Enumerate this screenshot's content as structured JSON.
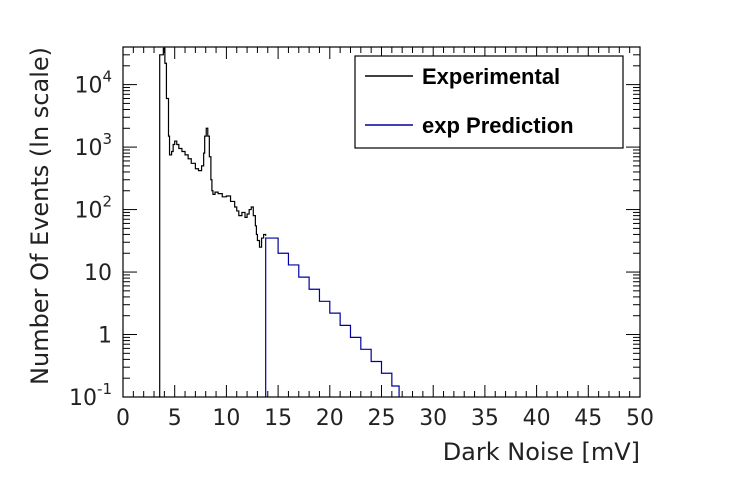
{
  "chart_data": {
    "type": "line",
    "title": "",
    "xlabel": "Dark Noise [mV]",
    "ylabel": "Number Of Events (ln scale)",
    "xlim": [
      0,
      50
    ],
    "ylim": [
      0.1,
      40000
    ],
    "yscale": "log",
    "grid": false,
    "legend_position": "top-right",
    "x_ticks": [
      0,
      5,
      10,
      15,
      20,
      25,
      30,
      35,
      40,
      45,
      50
    ],
    "x_tick_labels": [
      "0",
      "5",
      "10",
      "15",
      "20",
      "25",
      "30",
      "35",
      "40",
      "45",
      "50"
    ],
    "y_ticks": [
      0.1,
      1,
      10,
      100,
      1000,
      10000
    ],
    "y_tick_labels": [
      {
        "base": "10",
        "exp": "-1"
      },
      {
        "base": "1",
        "exp": ""
      },
      {
        "base": "10",
        "exp": ""
      },
      {
        "base": "10",
        "exp": "2"
      },
      {
        "base": "10",
        "exp": "3"
      },
      {
        "base": "10",
        "exp": "4"
      }
    ],
    "series": [
      {
        "name": "Experimental",
        "color": "#000000",
        "x": [
          3.5,
          3.55,
          3.9,
          4.05,
          4.2,
          4.4,
          4.5,
          4.7,
          4.85,
          5.0,
          5.2,
          5.4,
          5.7,
          6.0,
          6.3,
          6.6,
          7.0,
          7.3,
          7.6,
          7.8,
          7.9,
          8.05,
          8.2,
          8.35,
          8.5,
          8.6,
          8.7,
          8.9,
          9.2,
          9.6,
          10.0,
          10.4,
          10.8,
          11.0,
          11.2,
          11.5,
          11.8,
          12.0,
          12.2,
          12.4,
          12.6,
          12.8,
          12.9,
          13.0,
          13.2,
          13.4,
          13.6,
          13.8
        ],
        "y": [
          0.1,
          30000,
          38000,
          22000,
          6000,
          1500,
          750,
          850,
          1100,
          1250,
          1100,
          950,
          850,
          750,
          650,
          550,
          450,
          420,
          500,
          800,
          1500,
          2000,
          1500,
          700,
          300,
          200,
          175,
          190,
          180,
          160,
          165,
          135,
          110,
          95,
          80,
          90,
          75,
          85,
          100,
          110,
          80,
          55,
          40,
          32,
          25,
          35,
          40,
          38
        ]
      },
      {
        "name": "exp Prediction",
        "color": "#0000a0",
        "x": [
          13.8,
          13.8,
          15,
          16,
          17,
          18,
          19,
          20,
          21,
          22,
          23,
          24,
          25,
          26,
          26.7,
          26.7
        ],
        "y": [
          0.1,
          35,
          20,
          13,
          8.3,
          5.3,
          3.4,
          2.2,
          1.4,
          0.9,
          0.58,
          0.37,
          0.24,
          0.15,
          0.1,
          0.1
        ]
      }
    ]
  }
}
